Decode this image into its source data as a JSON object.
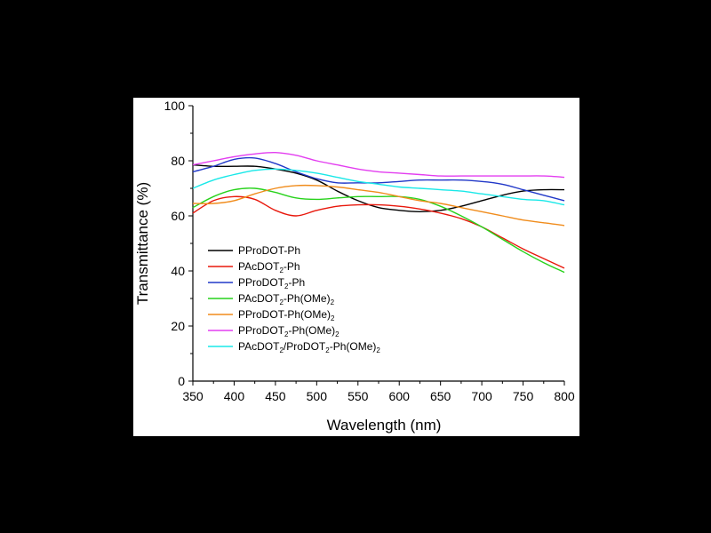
{
  "chart_data": {
    "type": "line",
    "xlabel": "Wavelength (nm)",
    "ylabel": "Transmittance (%)",
    "xlim": [
      350,
      800
    ],
    "ylim": [
      0,
      100
    ],
    "xticks": [
      350,
      400,
      450,
      500,
      550,
      600,
      650,
      700,
      750,
      800
    ],
    "yticks": [
      0,
      20,
      40,
      60,
      80,
      100
    ],
    "grid": false,
    "legend_position": "left",
    "series": [
      {
        "name": "PProDOT-Ph",
        "label_main": "PProDOT-Ph",
        "label_sub": "",
        "label_tail": "",
        "label_sub2": "",
        "color": "#000000",
        "x": [
          350,
          375,
          400,
          425,
          450,
          475,
          500,
          525,
          550,
          575,
          600,
          625,
          650,
          675,
          700,
          725,
          750,
          775,
          800
        ],
        "y": [
          78.5,
          78,
          78,
          78,
          77,
          75.5,
          73,
          69,
          65.5,
          63,
          62,
          61.5,
          62,
          63.5,
          65.5,
          67.5,
          69,
          69.5,
          69.5
        ]
      },
      {
        "name": "PAcDOT2-Ph",
        "label_main": "PAcDOT",
        "label_sub": "2",
        "label_tail": "-Ph",
        "label_sub2": "",
        "color": "#e8180c",
        "x": [
          350,
          375,
          400,
          425,
          450,
          475,
          500,
          525,
          550,
          575,
          600,
          625,
          650,
          675,
          700,
          725,
          750,
          775,
          800
        ],
        "y": [
          61,
          65.5,
          67,
          66,
          62,
          60,
          62,
          63.5,
          64,
          64,
          63.5,
          62.5,
          61,
          59,
          56,
          52,
          48,
          44.5,
          41
        ]
      },
      {
        "name": "PProDOT2-Ph",
        "label_main": "PProDOT",
        "label_sub": "2",
        "label_tail": "-Ph",
        "label_sub2": "",
        "color": "#2138c8",
        "x": [
          350,
          375,
          400,
          425,
          450,
          475,
          500,
          525,
          550,
          575,
          600,
          625,
          650,
          675,
          700,
          725,
          750,
          775,
          800
        ],
        "y": [
          76,
          78,
          80.5,
          81,
          79,
          76,
          73.5,
          72,
          72,
          72,
          72.5,
          73,
          73,
          73,
          72.5,
          71.5,
          69.5,
          67.5,
          65.5
        ]
      },
      {
        "name": "PAcDOT2-Ph(OMe)2",
        "label_main": "PAcDOT",
        "label_sub": "2",
        "label_tail": "-Ph(OMe)",
        "label_sub2": "2",
        "color": "#27d21b",
        "x": [
          350,
          375,
          400,
          425,
          450,
          475,
          500,
          525,
          550,
          575,
          600,
          625,
          650,
          675,
          700,
          725,
          750,
          775,
          800
        ],
        "y": [
          63,
          67,
          69.5,
          70,
          68.5,
          66.5,
          66,
          66.5,
          67,
          67,
          67,
          66,
          63.5,
          60,
          56,
          51.5,
          47,
          43,
          39.5
        ]
      },
      {
        "name": "PProDOT-Ph(OMe)2",
        "label_main": "PProDOT-Ph(OMe)",
        "label_sub": "",
        "label_tail": "",
        "label_sub2": "2",
        "color": "#f08c1c",
        "x": [
          350,
          375,
          400,
          425,
          450,
          475,
          500,
          525,
          550,
          575,
          600,
          625,
          650,
          675,
          700,
          725,
          750,
          775,
          800
        ],
        "y": [
          64.5,
          64.5,
          65.5,
          68,
          70,
          71,
          71,
          70.5,
          69.5,
          68.5,
          67,
          65.5,
          64.5,
          63,
          61.5,
          60,
          58.5,
          57.5,
          56.5
        ]
      },
      {
        "name": "PProDOT2-Ph(OMe)2",
        "label_main": "PProDOT",
        "label_sub": "2",
        "label_tail": "-Ph(OMe)",
        "label_sub2": "2",
        "color": "#e33ef0",
        "x": [
          350,
          375,
          400,
          425,
          450,
          475,
          500,
          525,
          550,
          575,
          600,
          625,
          650,
          675,
          700,
          725,
          750,
          775,
          800
        ],
        "y": [
          78.5,
          80,
          81.5,
          82.5,
          83,
          82,
          80,
          78.5,
          77,
          76,
          75.5,
          75,
          74.5,
          74.5,
          74.5,
          74.5,
          74.5,
          74.5,
          74
        ]
      },
      {
        "name": "PAcDOT2/ProDOT2-Ph(OMe)2",
        "label_main": "PAcDOT",
        "label_sub": "2",
        "label_tail": "/ProDOT",
        "label_sub2": "2",
        "label_tail2": "-Ph(OMe)",
        "label_sub3": "2",
        "color": "#19e8e8",
        "x": [
          350,
          375,
          400,
          425,
          450,
          475,
          500,
          525,
          550,
          575,
          600,
          625,
          650,
          675,
          700,
          725,
          750,
          775,
          800
        ],
        "y": [
          70,
          73,
          75,
          76.5,
          77,
          76.5,
          75.5,
          74,
          72.5,
          71.5,
          70.5,
          70,
          69.5,
          69,
          68,
          67,
          66,
          65.5,
          64
        ]
      }
    ]
  }
}
